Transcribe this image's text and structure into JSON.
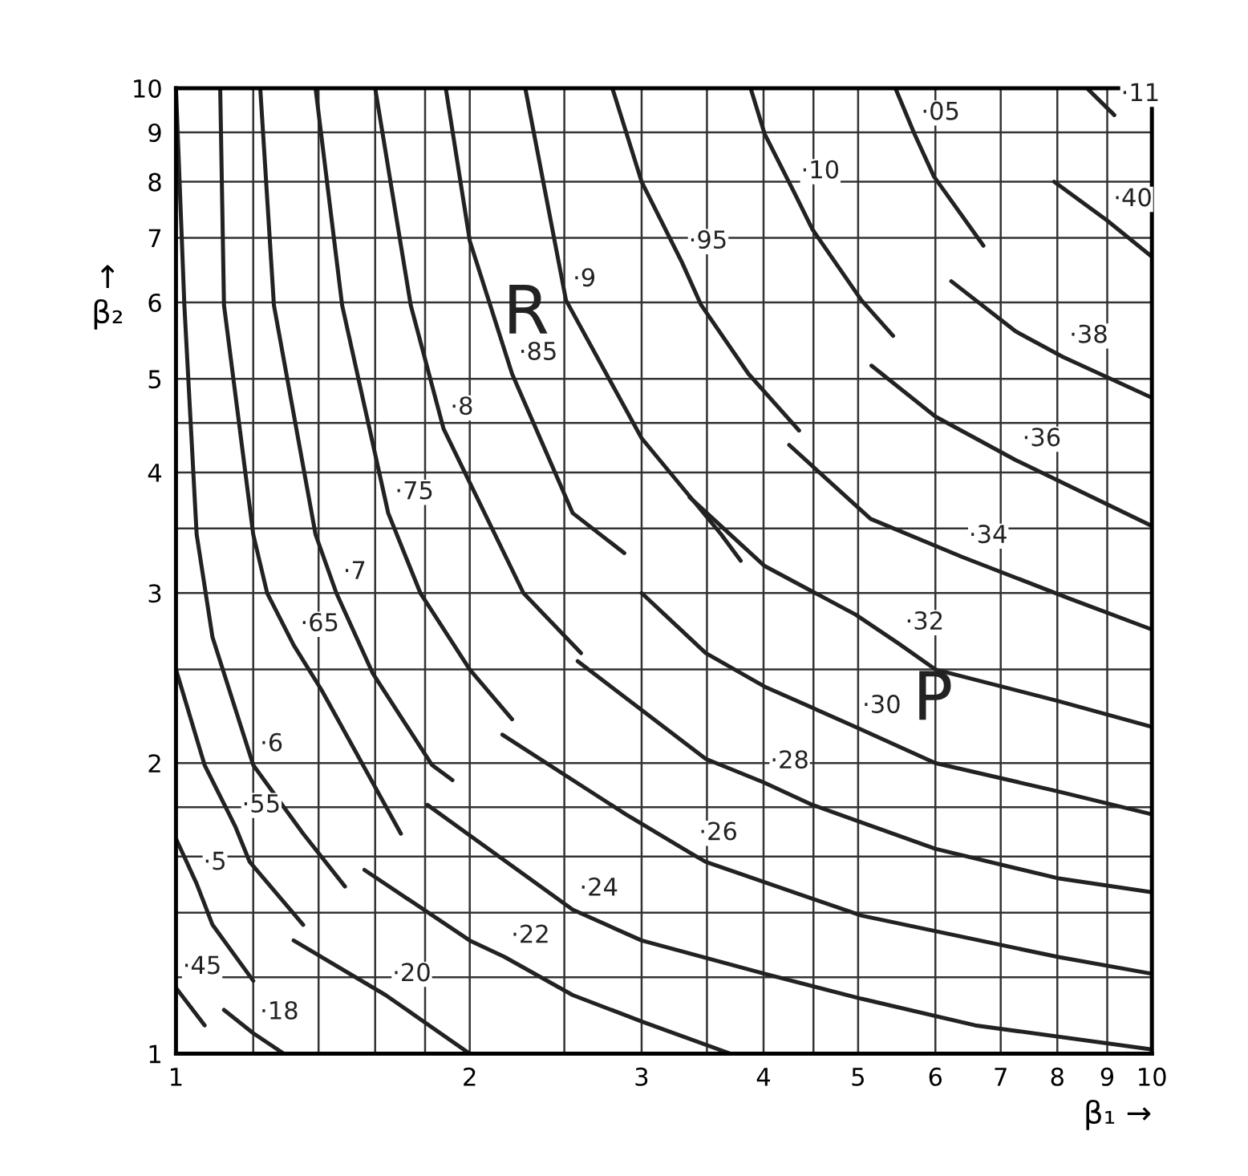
{
  "chart_data": {
    "type": "line",
    "xlabel": "β₁ →",
    "ylabel": "↑\nβ₂",
    "log": "xy",
    "grid": true,
    "xlim": [
      1,
      10
    ],
    "ylim": [
      1,
      10
    ],
    "xticks": [
      1,
      {
        "value": 1.2,
        "label": null
      },
      {
        "value": 1.4,
        "label": null
      },
      {
        "value": 1.6,
        "label": null
      },
      {
        "value": 1.8,
        "label": null
      },
      2,
      {
        "value": 2.5,
        "label": null
      },
      3,
      {
        "value": 3.5,
        "label": null
      },
      4,
      {
        "value": 4.5,
        "label": null
      },
      5,
      6,
      7,
      8,
      9,
      10
    ],
    "yticks": [
      1,
      {
        "value": 1.2,
        "label": null
      },
      {
        "value": 1.4,
        "label": null
      },
      {
        "value": 1.6,
        "label": null
      },
      {
        "value": 1.8,
        "label": null
      },
      2,
      {
        "value": 2.5,
        "label": null
      },
      3,
      {
        "value": 3.5,
        "label": null
      },
      4,
      {
        "value": 4.5,
        "label": null
      },
      5,
      6,
      7,
      8,
      9,
      10
    ],
    "series": [
      {
        "color": "#222222",
        "x": [
          1.0,
          1.07
        ],
        "values": [
          1.17,
          1.07
        ]
      },
      {
        "color": "#222222",
        "x": [
          1.0,
          1.05,
          1.09,
          1.2
        ],
        "values": [
          1.67,
          1.5,
          1.36,
          1.19
        ]
      },
      {
        "color": "#222222",
        "x": [
          1.0,
          1.07,
          1.15,
          1.19,
          1.35
        ],
        "values": [
          2.5,
          1.99,
          1.72,
          1.58,
          1.36
        ]
      },
      {
        "color": "#222222",
        "x": [
          1.0,
          1.02,
          1.05,
          1.09,
          1.2,
          1.35,
          1.49
        ],
        "values": [
          10,
          5.96,
          3.45,
          2.7,
          1.99,
          1.69,
          1.49
        ]
      },
      {
        "color": "#222222",
        "x": [
          1.11,
          1.12,
          1.2,
          1.24,
          1.32,
          1.41,
          1.7
        ],
        "values": [
          10,
          5.96,
          3.45,
          3.0,
          2.65,
          2.38,
          1.69
        ]
      },
      {
        "color": "#222222",
        "x": [
          1.22,
          1.26,
          1.39,
          1.46,
          1.59,
          1.83,
          1.92
        ],
        "values": [
          10,
          5.96,
          3.45,
          3.0,
          2.48,
          1.99,
          1.92
        ]
      },
      {
        "color": "#222222",
        "x": [
          1.39,
          1.48,
          1.65,
          1.78,
          2.0,
          2.21
        ],
        "values": [
          10,
          5.96,
          3.63,
          3.0,
          2.5,
          2.22
        ]
      },
      {
        "color": "#222222",
        "x": [
          1.6,
          1.74,
          1.88,
          2.27,
          2.6
        ],
        "values": [
          10,
          5.96,
          4.44,
          3.0,
          2.6
        ]
      },
      {
        "color": "#222222",
        "x": [
          1.89,
          2.0,
          2.21,
          2.55,
          2.88
        ],
        "values": [
          10,
          6.95,
          5.06,
          3.63,
          3.3
        ]
      },
      {
        "color": "#222222",
        "x": [
          2.28,
          2.51,
          3.0,
          3.62,
          3.79
        ],
        "values": [
          10,
          6.03,
          4.34,
          3.45,
          3.24
        ]
      },
      {
        "color": "#222222",
        "x": [
          2.8,
          3.0,
          3.3,
          3.45,
          3.86,
          4.35
        ],
        "values": [
          10,
          8.0,
          6.6,
          5.97,
          5.06,
          4.42
        ]
      },
      {
        "color": "#222222",
        "x": [
          3.88,
          4.01,
          4.3,
          4.49,
          5.04,
          5.43
        ],
        "values": [
          10,
          8.97,
          7.8,
          7.14,
          6.03,
          5.54
        ]
      },
      {
        "color": "#222222",
        "x": [
          5.46,
          5.71,
          5.98,
          6.72
        ],
        "values": [
          10,
          8.97,
          8.1,
          6.87
        ]
      },
      {
        "color": "#222222",
        "x": [
          8.58,
          9.15
        ],
        "values": [
          10,
          9.38
        ]
      },
      {
        "color": "#222222",
        "x": [
          1.12,
          1.2,
          1.29
        ],
        "values": [
          1.11,
          1.05,
          1.0
        ]
      },
      {
        "color": "#222222",
        "x": [
          1.32,
          1.64,
          2.0
        ],
        "values": [
          1.31,
          1.15,
          1.0
        ]
      },
      {
        "color": "#222222",
        "x": [
          1.56,
          2.0,
          2.17,
          2.55,
          3.0,
          3.7
        ],
        "values": [
          1.55,
          1.31,
          1.26,
          1.15,
          1.08,
          1.0
        ]
      },
      {
        "color": "#222222",
        "x": [
          1.81,
          2.55,
          3.0,
          4.01,
          5.04,
          6.59,
          10
        ],
        "values": [
          1.81,
          1.41,
          1.31,
          1.21,
          1.14,
          1.07,
          1.01
        ]
      },
      {
        "color": "#222222",
        "x": [
          2.16,
          2.89,
          3.38,
          3.49,
          5.04,
          8.0,
          10
        ],
        "values": [
          2.14,
          1.77,
          1.61,
          1.58,
          1.39,
          1.26,
          1.21
        ]
      },
      {
        "color": "#222222",
        "x": [
          2.58,
          3.49,
          4.0,
          4.49,
          6.0,
          8.0,
          10
        ],
        "values": [
          2.55,
          2.02,
          1.91,
          1.81,
          1.63,
          1.52,
          1.47
        ]
      },
      {
        "color": "#222222",
        "x": [
          3.0,
          3.49,
          4.01,
          4.97,
          6.0,
          8.0,
          10
        ],
        "values": [
          3.0,
          2.6,
          2.4,
          2.18,
          2.0,
          1.87,
          1.77
        ]
      },
      {
        "color": "#222222",
        "x": [
          3.36,
          4.01,
          4.97,
          5.5,
          6.0,
          8.0,
          10
        ],
        "values": [
          3.77,
          3.2,
          2.85,
          2.66,
          2.5,
          2.32,
          2.18
        ]
      },
      {
        "color": "#222222",
        "x": [
          4.25,
          5.15,
          6.39,
          8.24,
          10
        ],
        "values": [
          4.27,
          3.58,
          3.27,
          2.96,
          2.75
        ]
      },
      {
        "color": "#222222",
        "x": [
          5.16,
          6.0,
          7.25,
          10
        ],
        "values": [
          5.16,
          4.57,
          4.12,
          3.52
        ]
      },
      {
        "color": "#222222",
        "x": [
          6.23,
          7.25,
          8.1,
          10
        ],
        "values": [
          6.31,
          5.6,
          5.27,
          4.78
        ]
      },
      {
        "color": "#222222",
        "x": [
          7.94,
          8.99,
          10
        ],
        "values": [
          8.0,
          7.3,
          6.69
        ]
      }
    ],
    "annotations": [
      "R",
      "P",
      {
        "text": "·45",
        "x": 1.0,
        "y": 1.17
      },
      {
        "text": "·5",
        "x": 1.05,
        "y": 1.5
      },
      {
        "text": "·55",
        "x": 1.15,
        "y": 1.72
      },
      {
        "text": "·6",
        "x": 1.2,
        "y": 1.99
      },
      {
        "text": "·65",
        "x": 1.32,
        "y": 2.65
      },
      {
        "text": "·7",
        "x": 1.46,
        "y": 3.0
      },
      {
        "text": "·75",
        "x": 1.65,
        "y": 3.63
      },
      {
        "text": "·8",
        "x": 1.88,
        "y": 4.44
      },
      {
        "text": "·85",
        "x": 2.21,
        "y": 5.06
      },
      {
        "text": "·9",
        "x": 2.51,
        "y": 6.03
      },
      {
        "text": "·95",
        "x": 3.3,
        "y": 6.6
      },
      {
        "text": "·10",
        "x": 4.3,
        "y": 7.8
      },
      {
        "text": "·05",
        "x": 5.71,
        "y": 8.97
      },
      {
        "text": "·11",
        "x": 9.15,
        "y": 9.38
      },
      {
        "text": "·18",
        "x": 1.2,
        "y": 1.05
      },
      {
        "text": "·20",
        "x": 1.64,
        "y": 1.15
      },
      {
        "text": "·22",
        "x": 2.17,
        "y": 1.26
      },
      {
        "text": "·24",
        "x": 2.55,
        "y": 1.41
      },
      {
        "text": "·26",
        "x": 3.38,
        "y": 1.61
      },
      {
        "text": "·28",
        "x": 4.0,
        "y": 1.91
      },
      {
        "text": "·30",
        "x": 4.97,
        "y": 2.18
      },
      {
        "text": "·32",
        "x": 5.5,
        "y": 2.66
      },
      {
        "text": "·34",
        "x": 6.39,
        "y": 3.27
      },
      {
        "text": "·36",
        "x": 7.25,
        "y": 4.12
      },
      {
        "text": "·38",
        "x": 8.1,
        "y": 5.27
      },
      {
        "text": "·40",
        "x": 8.99,
        "y": 7.3
      }
    ]
  }
}
